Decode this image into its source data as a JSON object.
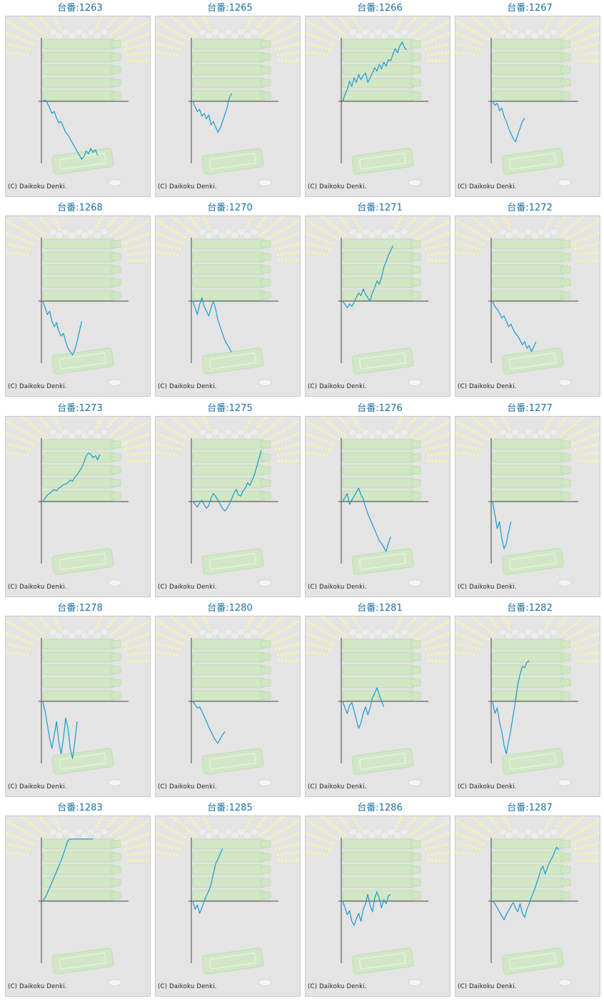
{
  "label_prefix": "台番:",
  "copyright": "(C) Daikoku Denki.",
  "colors": {
    "title": "#1a6fa0",
    "line": "#1a9ad0",
    "axis": "#444444",
    "panel_bg": "#e4e4e4",
    "panel_border": "#c9c9c9",
    "bg_art_green": "#cfe8c2",
    "bg_art_rays": "#f4f2b8"
  },
  "machines": [
    {
      "number": "1263",
      "trend": [
        0,
        2,
        -3,
        -10,
        -18,
        -15,
        -25,
        -32,
        -30,
        -38,
        -46,
        -50,
        -56,
        -62,
        -68,
        -74,
        -80,
        -86,
        -82,
        -74,
        -78,
        -70,
        -76,
        -72,
        -80
      ]
    },
    {
      "number": "1265",
      "trend": [
        0,
        -8,
        -15,
        -12,
        -22,
        -18,
        -26,
        -20,
        -35,
        -30,
        -38,
        -46,
        -40,
        -30,
        -20,
        -10,
        5,
        12
      ]
    },
    {
      "number": "1266",
      "trend": [
        0,
        10,
        18,
        30,
        22,
        35,
        28,
        40,
        32,
        38,
        42,
        28,
        35,
        42,
        50,
        45,
        55,
        48,
        58,
        52,
        62,
        60,
        70,
        78,
        72,
        82,
        88,
        80,
        76
      ]
    },
    {
      "number": "1267",
      "trend": [
        0,
        -6,
        -3,
        -14,
        -10,
        -22,
        -30,
        -40,
        -48,
        -55,
        -60,
        -50,
        -40,
        -30,
        -25
      ]
    },
    {
      "number": "1268",
      "trend": [
        0,
        -10,
        -20,
        -15,
        -30,
        -38,
        -32,
        -45,
        -52,
        -48,
        -60,
        -70,
        -75,
        -80,
        -72,
        -60,
        -45,
        -30
      ]
    },
    {
      "number": "1270",
      "trend": [
        0,
        -10,
        -20,
        -5,
        5,
        -8,
        -15,
        -22,
        -10,
        0,
        -12,
        -28,
        -38,
        -48,
        -58,
        -64,
        -70,
        -76
      ]
    },
    {
      "number": "1271",
      "trend": [
        0,
        -5,
        -10,
        -4,
        -8,
        -2,
        6,
        12,
        8,
        18,
        10,
        5,
        0,
        12,
        20,
        30,
        25,
        35,
        50,
        58,
        68,
        75,
        82
      ]
    },
    {
      "number": "1272",
      "trend": [
        0,
        -8,
        -12,
        -18,
        -25,
        -22,
        -30,
        -38,
        -34,
        -42,
        -48,
        -52,
        -58,
        -65,
        -60,
        -70,
        -66,
        -75,
        -68,
        -60
      ]
    },
    {
      "number": "1273",
      "trend": [
        0,
        5,
        10,
        12,
        15,
        18,
        16,
        20,
        22,
        25,
        26,
        28,
        32,
        30,
        36,
        40,
        45,
        50,
        58,
        68,
        72,
        70,
        65,
        68,
        62,
        70
      ]
    },
    {
      "number": "1275",
      "trend": [
        0,
        -4,
        -8,
        -2,
        2,
        -5,
        -10,
        -6,
        5,
        12,
        8,
        2,
        -4,
        -10,
        -14,
        -10,
        -4,
        4,
        12,
        18,
        10,
        8,
        16,
        20,
        28,
        24,
        32,
        40,
        52,
        64,
        76
      ]
    },
    {
      "number": "1276",
      "trend": [
        0,
        6,
        12,
        -4,
        2,
        8,
        14,
        20,
        10,
        4,
        -8,
        -18,
        -26,
        -34,
        -42,
        -50,
        -58,
        -62,
        -68,
        -74,
        -62,
        -52
      ]
    },
    {
      "number": "1277",
      "trend": [
        0,
        -20,
        -40,
        -30,
        -55,
        -70,
        -62,
        -45,
        -30
      ]
    },
    {
      "number": "1278",
      "trend": [
        0,
        -15,
        -35,
        -55,
        -70,
        -50,
        -30,
        -60,
        -78,
        -55,
        -25,
        -40,
        -70,
        -85,
        -60,
        -30
      ]
    },
    {
      "number": "1280",
      "trend": [
        0,
        -5,
        -10,
        -8,
        -15,
        -22,
        -30,
        -38,
        -45,
        -52,
        -58,
        -62,
        -56,
        -50,
        -45
      ]
    },
    {
      "number": "1281",
      "trend": [
        0,
        -10,
        -18,
        -6,
        -2,
        -14,
        -28,
        -40,
        -32,
        -18,
        -8,
        -20,
        -10,
        5,
        12,
        20,
        10,
        0,
        -8
      ]
    },
    {
      "number": "1282",
      "trend": [
        0,
        -18,
        -10,
        -30,
        -45,
        -65,
        -78,
        -60,
        -42,
        -20,
        0,
        25,
        40,
        52,
        50,
        58,
        60
      ]
    },
    {
      "number": "1283",
      "trend": [
        0,
        5,
        12,
        20,
        28,
        36,
        44,
        52,
        60,
        70,
        80,
        90,
        100,
        110,
        120,
        130,
        140,
        150,
        160,
        170,
        180,
        190,
        200
      ]
    },
    {
      "number": "1285",
      "trend": [
        0,
        -12,
        -6,
        -18,
        -10,
        0,
        8,
        15,
        25,
        40,
        55,
        62,
        70,
        78
      ]
    },
    {
      "number": "1286",
      "trend": [
        0,
        -10,
        -20,
        -14,
        -30,
        -36,
        -26,
        -18,
        -30,
        -12,
        -4,
        10,
        -6,
        -16,
        4,
        14,
        4,
        -10,
        2,
        -4,
        8,
        10
      ]
    },
    {
      "number": "1287",
      "trend": [
        0,
        -4,
        -10,
        -16,
        -22,
        -28,
        -20,
        -14,
        -8,
        -2,
        -10,
        -16,
        -4,
        -18,
        -24,
        -12,
        -4,
        6,
        14,
        24,
        34,
        46,
        52,
        40,
        50,
        58,
        64,
        72,
        80,
        76
      ]
    }
  ]
}
